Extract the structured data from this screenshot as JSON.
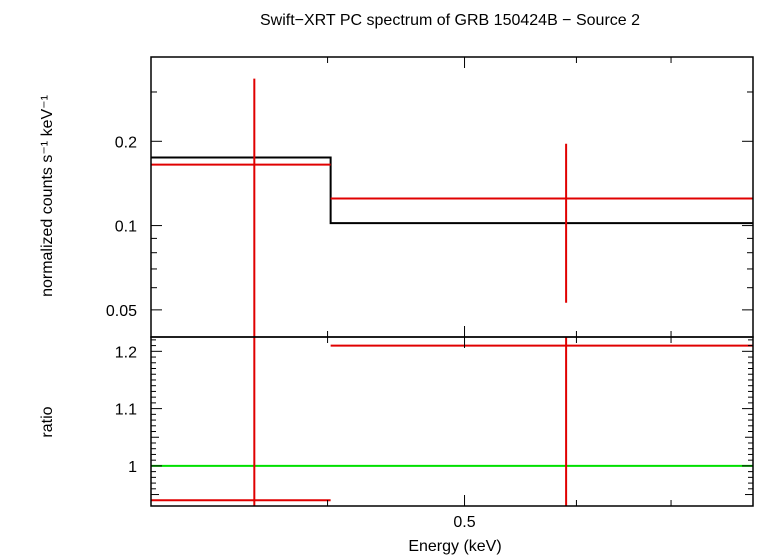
{
  "chart_data": [
    {
      "type": "line",
      "panel": "spectrum",
      "title": "Swift−XRT PC spectrum of GRB 150424B − Source 2",
      "ylabel": "normalized counts s⁻¹ keV⁻¹",
      "yscale": "log",
      "ylim": [
        0.04,
        0.4
      ],
      "y_ticks": [
        0.05,
        0.1,
        0.2
      ],
      "y_tick_labels": [
        "0.05",
        "0.1",
        "0.2"
      ],
      "xscale": "log",
      "xlim": [
        0.3,
        0.8
      ],
      "grid": false,
      "series": [
        {
          "kind": "model-step",
          "color": "#000000",
          "steps": [
            {
              "x0": 0.3,
              "x1": 0.402,
              "y": 0.175
            },
            {
              "x0": 0.402,
              "x1": 0.8,
              "y": 0.102
            }
          ]
        },
        {
          "kind": "data-errorbars",
          "color": "#e00000",
          "points": [
            {
              "x": 0.355,
              "xerr": [
                0.3,
                0.402
              ],
              "y": 0.165,
              "yerr": [
                0.0,
                0.335
              ]
            },
            {
              "x": 0.59,
              "xerr": [
                0.402,
                0.8
              ],
              "y": 0.125,
              "yerr": [
                0.053,
                0.196
              ]
            }
          ]
        }
      ]
    },
    {
      "type": "line",
      "panel": "ratio",
      "ylabel": "ratio",
      "xlabel": "Energy (keV)",
      "yscale": "linear",
      "ylim": [
        0.93,
        1.225
      ],
      "y_ticks": [
        1.0,
        1.1,
        1.2
      ],
      "y_tick_labels": [
        "1",
        "1.1",
        "1.2"
      ],
      "xscale": "log",
      "xlim": [
        0.3,
        0.8
      ],
      "x_ticks": [
        0.5
      ],
      "x_tick_labels": [
        "0.5"
      ],
      "grid": false,
      "series": [
        {
          "kind": "reference-line",
          "color": "#00e000",
          "y": 1.0
        },
        {
          "kind": "data-errorbars",
          "color": "#e00000",
          "points": [
            {
              "x": 0.355,
              "xerr": [
                0.3,
                0.402
              ],
              "y": 0.94,
              "yerr": [
                0.93,
                1.225
              ]
            },
            {
              "x": 0.59,
              "xerr": [
                0.402,
                0.8
              ],
              "y": 1.21,
              "yerr": [
                0.93,
                1.225
              ]
            }
          ]
        }
      ]
    }
  ]
}
